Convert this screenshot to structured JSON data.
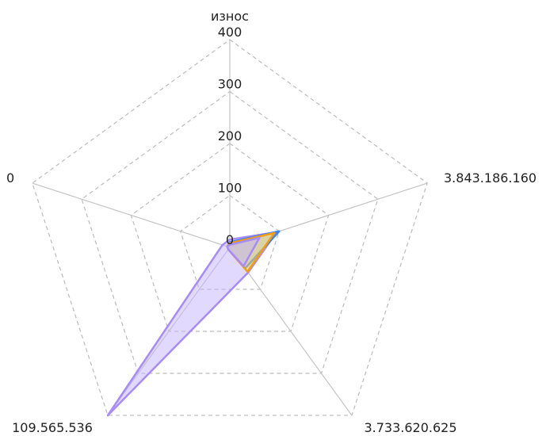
{
  "chart_data": {
    "type": "radar",
    "axes": [
      "износ",
      "3.843.186.160",
      "3.733.620.625",
      "109.565.536",
      "0"
    ],
    "ticks": [
      "0",
      "100",
      "200",
      "300",
      "400"
    ],
    "rmax": 400,
    "grid": true,
    "series": [
      {
        "color": "#a78bfa",
        "fill": "#c4b5fd",
        "values": [
          15,
          95,
          60,
          400,
          15
        ]
      },
      {
        "color": "#3b82f6",
        "fill": "#93c5fd",
        "values": [
          10,
          100,
          50,
          5,
          5
        ]
      },
      {
        "color": "#f59e0b",
        "fill": "#fcd34d",
        "values": [
          8,
          90,
          58,
          5,
          5
        ]
      },
      {
        "color": "#a78bfa",
        "fill": "#c4b5fd",
        "values": [
          5,
          60,
          45,
          5,
          5
        ]
      }
    ]
  }
}
